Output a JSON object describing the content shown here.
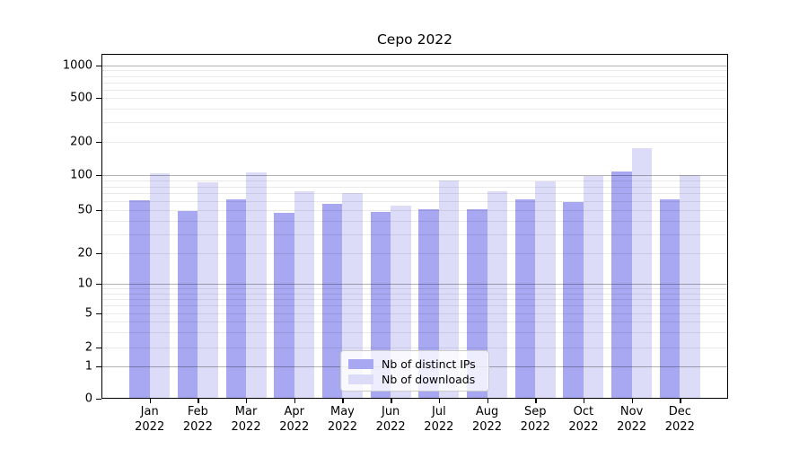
{
  "title": "Cepo 2022",
  "chart_data": {
    "type": "bar",
    "title": "Cepo 2022",
    "categories": [
      "Jan 2022",
      "Feb 2022",
      "Mar 2022",
      "Apr 2022",
      "May 2022",
      "Jun 2022",
      "Jul 2022",
      "Aug 2022",
      "Sep 2022",
      "Oct 2022",
      "Nov 2022",
      "Dec 2022"
    ],
    "x_tick_line1": [
      "Jan",
      "Feb",
      "Mar",
      "Apr",
      "May",
      "Jun",
      "Jul",
      "Aug",
      "Sep",
      "Oct",
      "Nov",
      "Dec"
    ],
    "x_tick_line2": "2022",
    "series": [
      {
        "name": "Nb of distinct IPs",
        "color": "#a7a7f2",
        "values": [
          61,
          49,
          62,
          47,
          57,
          48,
          51,
          51,
          62,
          59,
          108,
          62
        ]
      },
      {
        "name": "Nb of downloads",
        "color": "#dcdcf9",
        "values": [
          104,
          86,
          106,
          73,
          70,
          55,
          90,
          72,
          88,
          99,
          174,
          100
        ]
      }
    ],
    "y_axis": {
      "scale": "asinh-log (linear near 0, logarithmic above)",
      "ticks": [
        0,
        1,
        2,
        5,
        10,
        20,
        50,
        100,
        200,
        500,
        1000
      ],
      "minor_ticks": [
        3,
        4,
        6,
        7,
        8,
        9,
        30,
        40,
        60,
        70,
        80,
        90,
        300,
        400,
        600,
        700,
        800,
        900
      ],
      "range": [
        0,
        1500
      ]
    },
    "xlabel": "",
    "ylabel": "",
    "grid": "major and minor horizontal gridlines",
    "legend_position": "lower center"
  },
  "colors": {
    "bar_distinct_ips": "#a7a7f2",
    "bar_downloads": "#dcdcf9",
    "grid_major": "#b5b5b5",
    "grid_minor": "#ebebeb",
    "spine": "#000000",
    "legend_border": "#cccccc",
    "text": "#000000"
  }
}
